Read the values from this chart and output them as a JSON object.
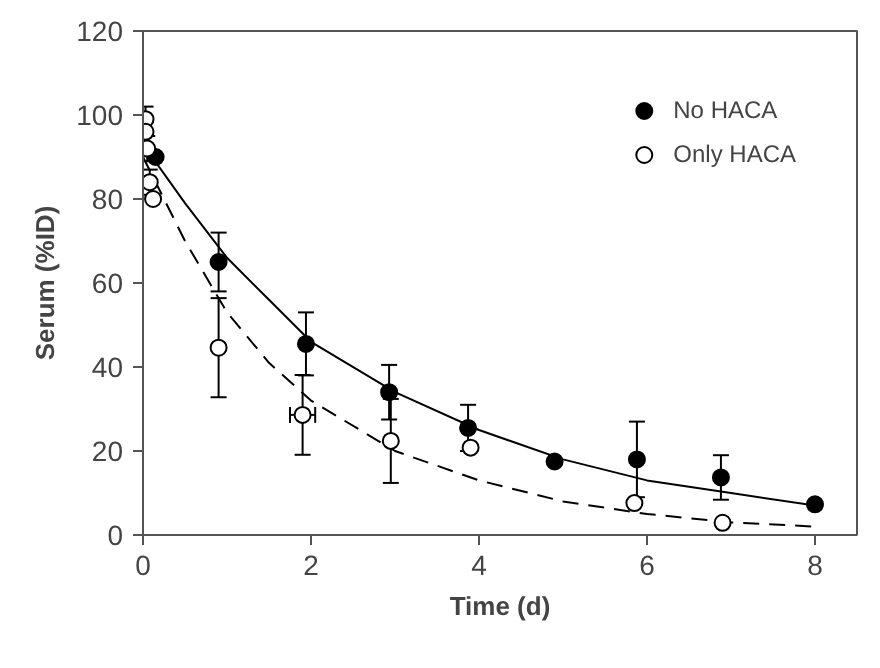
{
  "chart_data": {
    "type": "scatter",
    "xlabel": "Time (d)",
    "ylabel": "Serum (%ID)",
    "xlim": [
      0,
      8.5
    ],
    "ylim": [
      0,
      120
    ],
    "xticks": [
      0,
      2,
      4,
      6,
      8
    ],
    "yticks": [
      0,
      20,
      40,
      60,
      80,
      100,
      120
    ],
    "grid": false,
    "legend": "top right",
    "series": [
      {
        "name": "No HACA",
        "color": "#000000",
        "marker": "circle",
        "x": [
          0.15,
          0.9,
          1.94,
          2.93,
          3.87,
          4.9,
          5.88,
          6.88,
          8.0
        ],
        "values": [
          90,
          65,
          45.5,
          34,
          25.5,
          17.5,
          18,
          13.7,
          7.3
        ],
        "errors": [
          null,
          7,
          7.5,
          6.5,
          5.5,
          null,
          9,
          5.3,
          null
        ]
      },
      {
        "name": "Only HACA",
        "color": "#ffffff",
        "marker": "circle",
        "x": [
          0.03,
          0.03,
          0.05,
          0.08,
          0.12,
          0.9,
          1.9,
          2.95,
          3.9,
          5.85,
          6.9
        ],
        "values": [
          99,
          96,
          92,
          84,
          80,
          44.6,
          28.6,
          22.4,
          20.8,
          7.6,
          2.9
        ],
        "errors": [
          3,
          3,
          3,
          3,
          null,
          11.8,
          9.5,
          10,
          null,
          null,
          null
        ],
        "xerrors": [
          null,
          null,
          null,
          null,
          null,
          null,
          0.15,
          null,
          null,
          null,
          null
        ]
      },
      {
        "type": "line",
        "color": "#000000",
        "line_style": "solid",
        "marker": "none",
        "x": [
          0,
          0.5,
          1,
          1.5,
          2,
          3,
          4,
          5,
          6,
          7,
          8
        ],
        "values": [
          93,
          79,
          66,
          56,
          46,
          34,
          25,
          18,
          13,
          10,
          7
        ]
      },
      {
        "type": "line",
        "color": "#000000",
        "line_style": "dashed",
        "marker": "none",
        "x": [
          0,
          0.5,
          1,
          1.5,
          2,
          3,
          4,
          5,
          6,
          7,
          8
        ],
        "values": [
          90,
          70,
          53,
          41,
          32,
          20,
          13,
          8,
          5,
          3,
          2
        ]
      }
    ]
  }
}
